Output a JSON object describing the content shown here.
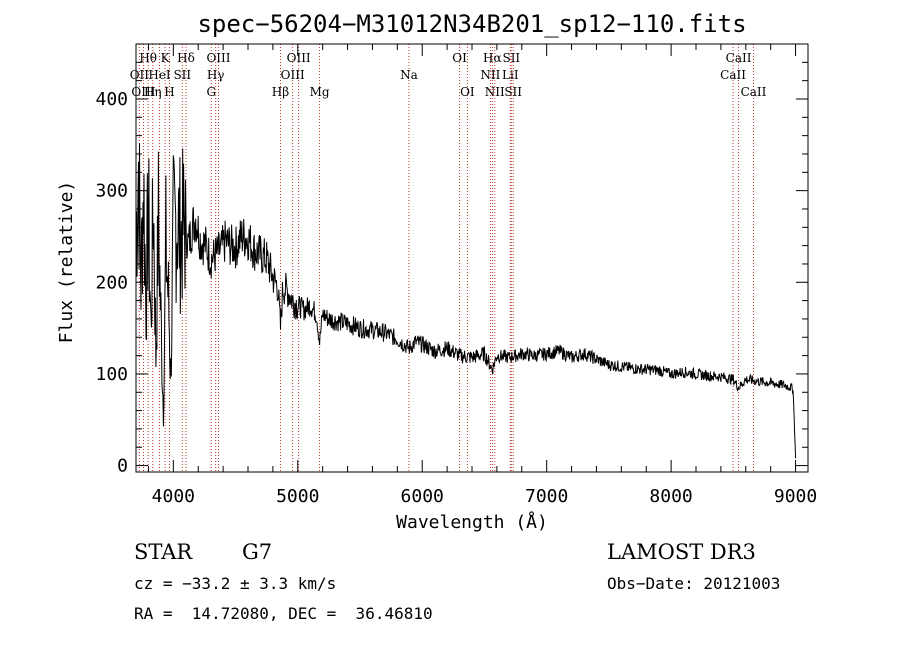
{
  "chart_data": {
    "type": "line",
    "title": "spec−56204−M31012N34B201_sp12−110.fits",
    "xlabel": "Wavelength (Å)",
    "ylabel": "Flux (relative)",
    "xlim": [
      3700,
      9100
    ],
    "ylim": [
      -7,
      460
    ],
    "xticks": [
      4000,
      5000,
      6000,
      7000,
      8000,
      9000
    ],
    "xtick_labels": [
      "4000",
      "5000",
      "6000",
      "7000",
      "8000",
      "9000"
    ],
    "yticks": [
      0,
      100,
      200,
      300,
      400
    ],
    "ytick_labels": [
      "0",
      "100",
      "200",
      "300",
      "400"
    ],
    "series": [
      {
        "name": "flux",
        "x": [
          3700,
          3720,
          3740,
          3760,
          3780,
          3800,
          3820,
          3840,
          3860,
          3880,
          3900,
          3920,
          3940,
          3960,
          3980,
          4000,
          4030,
          4060,
          4090,
          4120,
          4150,
          4180,
          4220,
          4260,
          4300,
          4340,
          4380,
          4420,
          4460,
          4500,
          4550,
          4600,
          4650,
          4700,
          4750,
          4800,
          4840,
          4861,
          4880,
          4920,
          4960,
          5000,
          5050,
          5100,
          5150,
          5175,
          5200,
          5250,
          5300,
          5400,
          5500,
          5600,
          5700,
          5800,
          5893,
          5950,
          6000,
          6100,
          6200,
          6300,
          6400,
          6500,
          6563,
          6600,
          6700,
          6800,
          6900,
          7000,
          7100,
          7200,
          7300,
          7400,
          7500,
          7600,
          7700,
          7800,
          7900,
          8000,
          8100,
          8200,
          8300,
          8400,
          8500,
          8542,
          8600,
          8700,
          8800,
          8900,
          8950,
          8980,
          9000
        ],
        "values": [
          250,
          330,
          200,
          310,
          180,
          280,
          150,
          290,
          120,
          270,
          160,
          60,
          240,
          180,
          100,
          255,
          270,
          250,
          265,
          240,
          260,
          270,
          245,
          240,
          225,
          230,
          235,
          245,
          240,
          238,
          250,
          248,
          235,
          230,
          225,
          205,
          195,
          150,
          195,
          190,
          180,
          175,
          170,
          175,
          165,
          135,
          165,
          160,
          158,
          155,
          150,
          148,
          145,
          138,
          128,
          135,
          132,
          125,
          128,
          120,
          118,
          122,
          105,
          120,
          118,
          122,
          120,
          122,
          125,
          118,
          122,
          116,
          110,
          108,
          106,
          105,
          104,
          100,
          102,
          100,
          98,
          97,
          94,
          85,
          94,
          92,
          90,
          88,
          86,
          84,
          8
        ]
      }
    ],
    "lines": [
      {
        "name": "Hθ",
        "wavelength": 3798,
        "row": 1
      },
      {
        "name": "OII",
        "wavelength": 3727,
        "row": 2
      },
      {
        "name": "OIII",
        "wavelength": 3760,
        "row": 3
      },
      {
        "name": "Hη",
        "wavelength": 3835,
        "row": 3
      },
      {
        "name": "K",
        "wavelength": 3934,
        "row": 1
      },
      {
        "name": "HeI",
        "wavelength": 3889,
        "row": 2
      },
      {
        "name": "H",
        "wavelength": 3969,
        "row": 3
      },
      {
        "name": "SII",
        "wavelength": 4072,
        "row": 2
      },
      {
        "name": "Hδ",
        "wavelength": 4102,
        "row": 1
      },
      {
        "name": "OIII",
        "wavelength": 4363,
        "row": 1
      },
      {
        "name": "Hγ",
        "wavelength": 4340,
        "row": 2
      },
      {
        "name": "G",
        "wavelength": 4305,
        "row": 3
      },
      {
        "name": "Hβ",
        "wavelength": 4861,
        "row": 3
      },
      {
        "name": "OIII",
        "wavelength": 4959,
        "row": 2
      },
      {
        "name": "OIII",
        "wavelength": 5007,
        "row": 1
      },
      {
        "name": "Mg",
        "wavelength": 5175,
        "row": 3
      },
      {
        "name": "Na",
        "wavelength": 5893,
        "row": 2
      },
      {
        "name": "OI",
        "wavelength": 6300,
        "row": 1
      },
      {
        "name": "OI",
        "wavelength": 6363,
        "row": 3
      },
      {
        "name": "Hα",
        "wavelength": 6563,
        "row": 1
      },
      {
        "name": "NII",
        "wavelength": 6548,
        "row": 2
      },
      {
        "name": "NII",
        "wavelength": 6583,
        "row": 3
      },
      {
        "name": "SII",
        "wavelength": 6716,
        "row": 1
      },
      {
        "name": "LiI",
        "wavelength": 6708,
        "row": 2
      },
      {
        "name": "SII",
        "wavelength": 6731,
        "row": 3
      },
      {
        "name": "CaII",
        "wavelength": 8542,
        "row": 1
      },
      {
        "name": "CaII",
        "wavelength": 8498,
        "row": 2
      },
      {
        "name": "CaII",
        "wavelength": 8662,
        "row": 3
      }
    ]
  },
  "info": {
    "class": "STAR",
    "subclass": "G7",
    "survey": "LAMOST DR3",
    "cz": "cz = −33.2 ± 3.3 km/s",
    "obs_date": "Obs−Date: 20121003",
    "radec": "RA =  14.72080, DEC =  36.46810"
  },
  "colors": {
    "line_marker": "#c0392b",
    "spectrum": "#000000",
    "axis": "#000000"
  }
}
